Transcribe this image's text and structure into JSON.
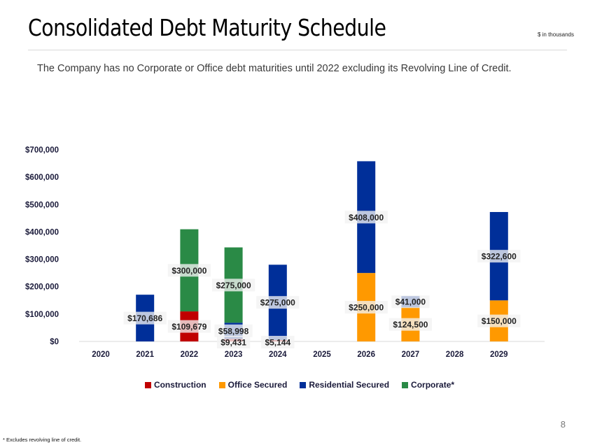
{
  "header": {
    "title": "Consolidated Debt Maturity Schedule",
    "units_note": "$ in thousands",
    "subtitle": "The Company has no Corporate or Office debt maturities until 2022 excluding its Revolving Line of Credit."
  },
  "footer": {
    "page_number": "8",
    "footnote": "* Excludes revolving line of credit."
  },
  "chart_data": {
    "type": "bar",
    "stacked": true,
    "title": "",
    "xlabel": "",
    "ylabel": "",
    "ylim": [
      0,
      700000
    ],
    "yticks": [
      0,
      100000,
      200000,
      300000,
      400000,
      500000,
      600000,
      700000
    ],
    "ytick_labels": [
      "$0",
      "$100,000",
      "$200,000",
      "$300,000",
      "$400,000",
      "$500,000",
      "$600,000",
      "$700,000"
    ],
    "grid": false,
    "legend_position": "bottom",
    "categories": [
      "2020",
      "2021",
      "2022",
      "2023",
      "2024",
      "2025",
      "2026",
      "2027",
      "2028",
      "2029"
    ],
    "series": [
      {
        "name": "Construction",
        "color": "#C00000",
        "values": [
          0,
          0,
          109679,
          9431,
          5144,
          0,
          0,
          0,
          0,
          0
        ]
      },
      {
        "name": "Office Secured",
        "color": "#FF9900",
        "values": [
          0,
          0,
          0,
          0,
          0,
          0,
          250000,
          124500,
          0,
          150000
        ]
      },
      {
        "name": "Residential Secured",
        "color": "#002F99",
        "values": [
          0,
          170686,
          0,
          58998,
          275000,
          0,
          408000,
          41000,
          0,
          322600
        ]
      },
      {
        "name": "Corporate*",
        "color": "#2A8A46",
        "values": [
          0,
          0,
          300000,
          275000,
          0,
          0,
          0,
          0,
          0,
          0
        ]
      }
    ],
    "data_labels": [
      {
        "category": "2021",
        "series": "Residential Secured",
        "text": "$170,686"
      },
      {
        "category": "2022",
        "series": "Construction",
        "text": "$109,679"
      },
      {
        "category": "2022",
        "series": "Corporate*",
        "text": "$300,000"
      },
      {
        "category": "2023",
        "series": "Construction",
        "text": "$9,431"
      },
      {
        "category": "2023",
        "series": "Residential Secured",
        "text": "$58,998"
      },
      {
        "category": "2023",
        "series": "Corporate*",
        "text": "$275,000"
      },
      {
        "category": "2024",
        "series": "Construction",
        "text": "$5,144"
      },
      {
        "category": "2024",
        "series": "Residential Secured",
        "text": "$275,000"
      },
      {
        "category": "2026",
        "series": "Office Secured",
        "text": "$250,000"
      },
      {
        "category": "2026",
        "series": "Residential Secured",
        "text": "$408,000"
      },
      {
        "category": "2027",
        "series": "Office Secured",
        "text": "$124,500"
      },
      {
        "category": "2027",
        "series": "Residential Secured",
        "text": "$41,000"
      },
      {
        "category": "2029",
        "series": "Office Secured",
        "text": "$150,000"
      },
      {
        "category": "2029",
        "series": "Residential Secured",
        "text": "$322,600"
      }
    ]
  }
}
